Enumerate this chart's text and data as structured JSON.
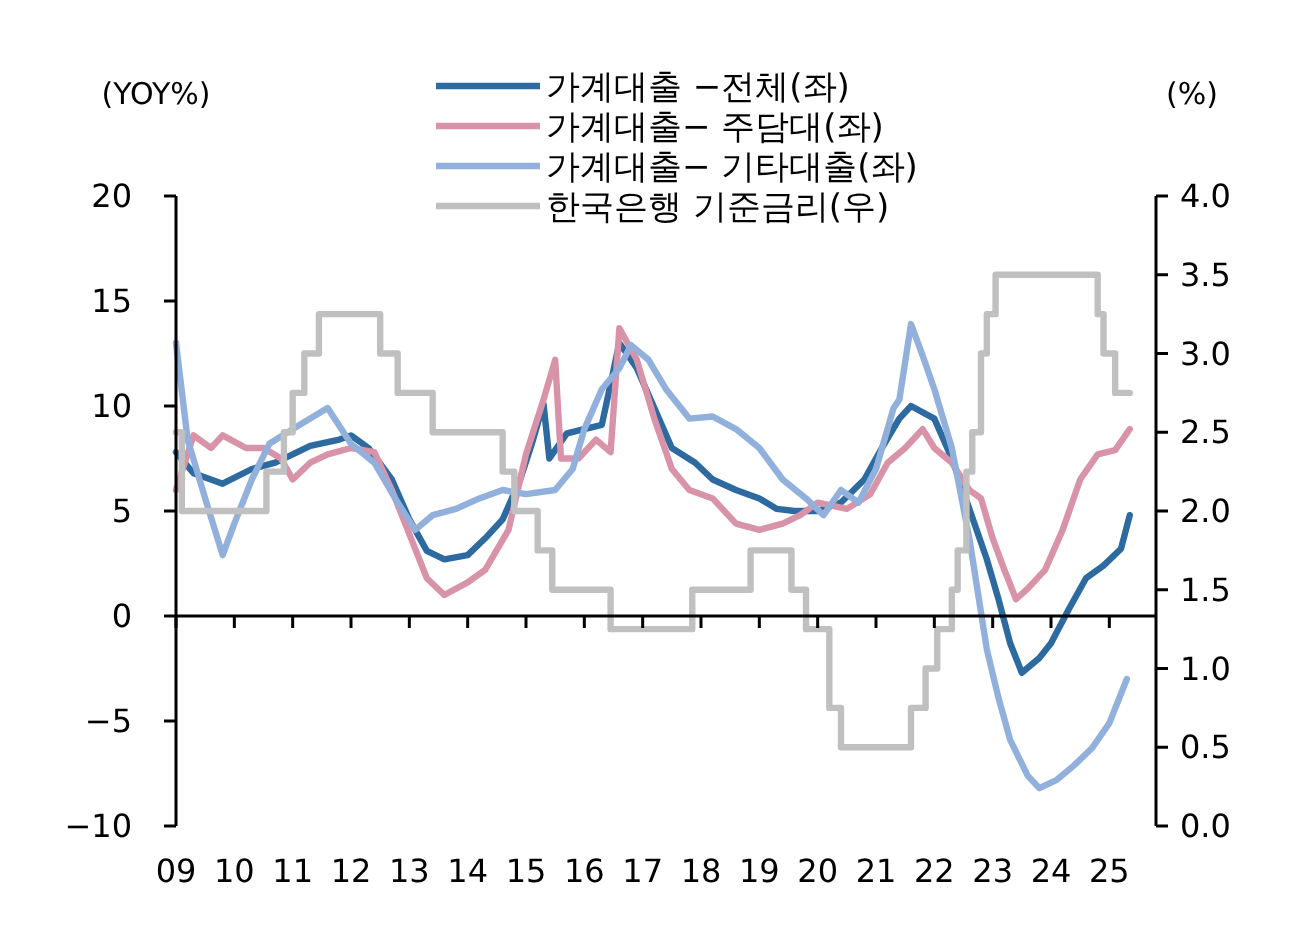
{
  "chart_data": {
    "type": "line",
    "ylabel": "(YOY%)",
    "y2label": "(%)",
    "legend": "top",
    "line_style": "solid",
    "marker": "none",
    "xlim": [
      2009,
      2025.8
    ],
    "xticks": [
      {
        "value": 2009,
        "label": "09"
      },
      {
        "value": 2010,
        "label": "10"
      },
      {
        "value": 2011,
        "label": "11"
      },
      {
        "value": 2012,
        "label": "12"
      },
      {
        "value": 2013,
        "label": "13"
      },
      {
        "value": 2014,
        "label": "14"
      },
      {
        "value": 2015,
        "label": "15"
      },
      {
        "value": 2016,
        "label": "16"
      },
      {
        "value": 2017,
        "label": "17"
      },
      {
        "value": 2018,
        "label": "18"
      },
      {
        "value": 2019,
        "label": "19"
      },
      {
        "value": 2020,
        "label": "20"
      },
      {
        "value": 2021,
        "label": "21"
      },
      {
        "value": 2022,
        "label": "22"
      },
      {
        "value": 2023,
        "label": "23"
      },
      {
        "value": 2024,
        "label": "24"
      },
      {
        "value": 2025,
        "label": "25"
      }
    ],
    "ylim": [
      -10,
      20
    ],
    "yticks": [
      -10,
      -5,
      0,
      5,
      10,
      15,
      20
    ],
    "y2lim": [
      0,
      4
    ],
    "y2ticks": [
      {
        "value": 0,
        "label": "0.0"
      },
      {
        "value": 0.5,
        "label": "0.5"
      },
      {
        "value": 1,
        "label": "1.0"
      },
      {
        "value": 1.5,
        "label": "1.5"
      },
      {
        "value": 2,
        "label": "2.0"
      },
      {
        "value": 2.5,
        "label": "2.5"
      },
      {
        "value": 3,
        "label": "3.0"
      },
      {
        "value": 3.5,
        "label": "3.5"
      },
      {
        "value": 4,
        "label": "4.0"
      }
    ],
    "series": [
      {
        "name": "가계대출 −전체(좌)",
        "color": "#2c6aa0",
        "x": [
          2009,
          2009.3,
          2009.8,
          2010.3,
          2010.7,
          2011,
          2011.3,
          2011.8,
          2012,
          2012.3,
          2012.7,
          2013,
          2013.3,
          2013.6,
          2014,
          2014.3,
          2014.6,
          2014.9,
          2015.1,
          2015.3,
          2015.4,
          2015.7,
          2016,
          2016.3,
          2016.6,
          2016.9,
          2017.2,
          2017.5,
          2017.9,
          2018.2,
          2018.6,
          2019,
          2019.3,
          2019.6,
          2020,
          2020.4,
          2020.8,
          2021.1,
          2021.4,
          2021.6,
          2022,
          2022.3,
          2022.6,
          2022.9,
          2023.1,
          2023.3,
          2023.5,
          2023.8,
          2024,
          2024.3,
          2024.6,
          2024.9,
          2025.2,
          2025.35
        ],
        "values": [
          7.8,
          6.8,
          6.3,
          7,
          7.3,
          7.7,
          8.1,
          8.4,
          8.6,
          8,
          6.5,
          4.6,
          3.1,
          2.7,
          2.9,
          3.7,
          4.6,
          6.5,
          8.2,
          10.1,
          7.5,
          8.7,
          8.9,
          9.1,
          13,
          11.8,
          9.9,
          8,
          7.3,
          6.5,
          6,
          5.6,
          5.1,
          5,
          5,
          5.4,
          6.5,
          8,
          9.4,
          10,
          9.4,
          7.5,
          5.1,
          2.7,
          0.8,
          -1.3,
          -2.7,
          -2,
          -1.3,
          0.3,
          1.8,
          2.4,
          3.2,
          4.8
        ]
      },
      {
        "name": "가계대출− 주담대(좌)",
        "color": "#d993a8",
        "x": [
          2009,
          2009.3,
          2009.6,
          2009.8,
          2010.2,
          2010.5,
          2010.8,
          2011,
          2011.3,
          2011.6,
          2012,
          2012.4,
          2012.7,
          2013,
          2013.3,
          2013.6,
          2014,
          2014.3,
          2014.7,
          2015,
          2015.3,
          2015.5,
          2015.6,
          2015.9,
          2016.2,
          2016.45,
          2016.6,
          2016.9,
          2017.2,
          2017.5,
          2017.8,
          2018.2,
          2018.6,
          2019,
          2019.4,
          2019.7,
          2020,
          2020.5,
          2020.9,
          2021.2,
          2021.5,
          2021.8,
          2022,
          2022.3,
          2022.6,
          2022.8,
          2023,
          2023.2,
          2023.4,
          2023.6,
          2023.9,
          2024.2,
          2024.5,
          2024.8,
          2025.1,
          2025.35
        ],
        "values": [
          6,
          8.6,
          8,
          8.6,
          8,
          8,
          7.5,
          6.5,
          7.3,
          7.7,
          8,
          7.8,
          6,
          3.9,
          1.8,
          1,
          1.6,
          2.2,
          4.1,
          7.7,
          10.3,
          12.2,
          7.5,
          7.5,
          8.4,
          7.8,
          13.7,
          12.2,
          9.4,
          7,
          6,
          5.6,
          4.4,
          4.1,
          4.4,
          4.8,
          5.4,
          5.1,
          5.8,
          7.3,
          8,
          8.9,
          8,
          7.3,
          6,
          5.6,
          3.7,
          2.2,
          0.8,
          1.3,
          2.2,
          4.1,
          6.5,
          7.7,
          7.9,
          8.9
        ]
      },
      {
        "name": "가계대출− 기타대출(좌)",
        "color": "#92b0dc",
        "x": [
          2009,
          2009.2,
          2009.5,
          2009.8,
          2010,
          2010.3,
          2010.6,
          2011,
          2011.3,
          2011.6,
          2012,
          2012.4,
          2012.8,
          2013.1,
          2013.4,
          2013.8,
          2014.2,
          2014.6,
          2015,
          2015.5,
          2015.8,
          2016,
          2016.3,
          2016.6,
          2016.8,
          2017.1,
          2017.4,
          2017.8,
          2018.2,
          2018.6,
          2019,
          2019.4,
          2019.8,
          2020.1,
          2020.4,
          2020.7,
          2021,
          2021.3,
          2021.4,
          2021.6,
          2021.8,
          2022,
          2022.3,
          2022.6,
          2022.9,
          2023.1,
          2023.3,
          2023.6,
          2023.8,
          2024.1,
          2024.4,
          2024.7,
          2025,
          2025.3
        ],
        "values": [
          13,
          8.4,
          5.6,
          2.9,
          4.4,
          6.5,
          8.2,
          8.9,
          9.4,
          9.9,
          8.2,
          7.3,
          5.4,
          4.1,
          4.8,
          5.1,
          5.6,
          6,
          5.8,
          6,
          7,
          8.9,
          10.8,
          11.8,
          12.9,
          12.2,
          10.8,
          9.4,
          9.5,
          8.9,
          8,
          6.5,
          5.6,
          4.8,
          6,
          5.4,
          7,
          9.9,
          10.3,
          13.9,
          12.4,
          10.8,
          8,
          3.7,
          -1.6,
          -3.9,
          -5.9,
          -7.6,
          -8.2,
          -7.8,
          -7.1,
          -6.3,
          -5.1,
          -3
        ]
      },
      {
        "name": "한국은행 기준금리(우)",
        "color": "#c0c0c0",
        "type": "step",
        "axis": "y2",
        "x": [
          2009,
          2009.1,
          2010.55,
          2010.85,
          2011,
          2011.2,
          2011.45,
          2012.5,
          2012.8,
          2013.4,
          2014.6,
          2014.8,
          2015.2,
          2015.45,
          2016.45,
          2017.85,
          2018.85,
          2019.55,
          2019.8,
          2020.2,
          2020.4,
          2021.6,
          2021.85,
          2022.05,
          2022.3,
          2022.4,
          2022.55,
          2022.65,
          2022.8,
          2022.9,
          2023.05,
          2024.8,
          2024.9,
          2025.1,
          2025.35
        ],
        "values": [
          2.5,
          2,
          2.25,
          2.5,
          2.75,
          3,
          3.25,
          3,
          2.75,
          2.5,
          2.25,
          2,
          1.75,
          1.5,
          1.25,
          1.5,
          1.75,
          1.5,
          1.25,
          0.75,
          0.5,
          0.75,
          1,
          1.25,
          1.5,
          1.75,
          2.25,
          2.5,
          3,
          3.25,
          3.5,
          3.25,
          3,
          2.75,
          2.75
        ]
      }
    ]
  }
}
